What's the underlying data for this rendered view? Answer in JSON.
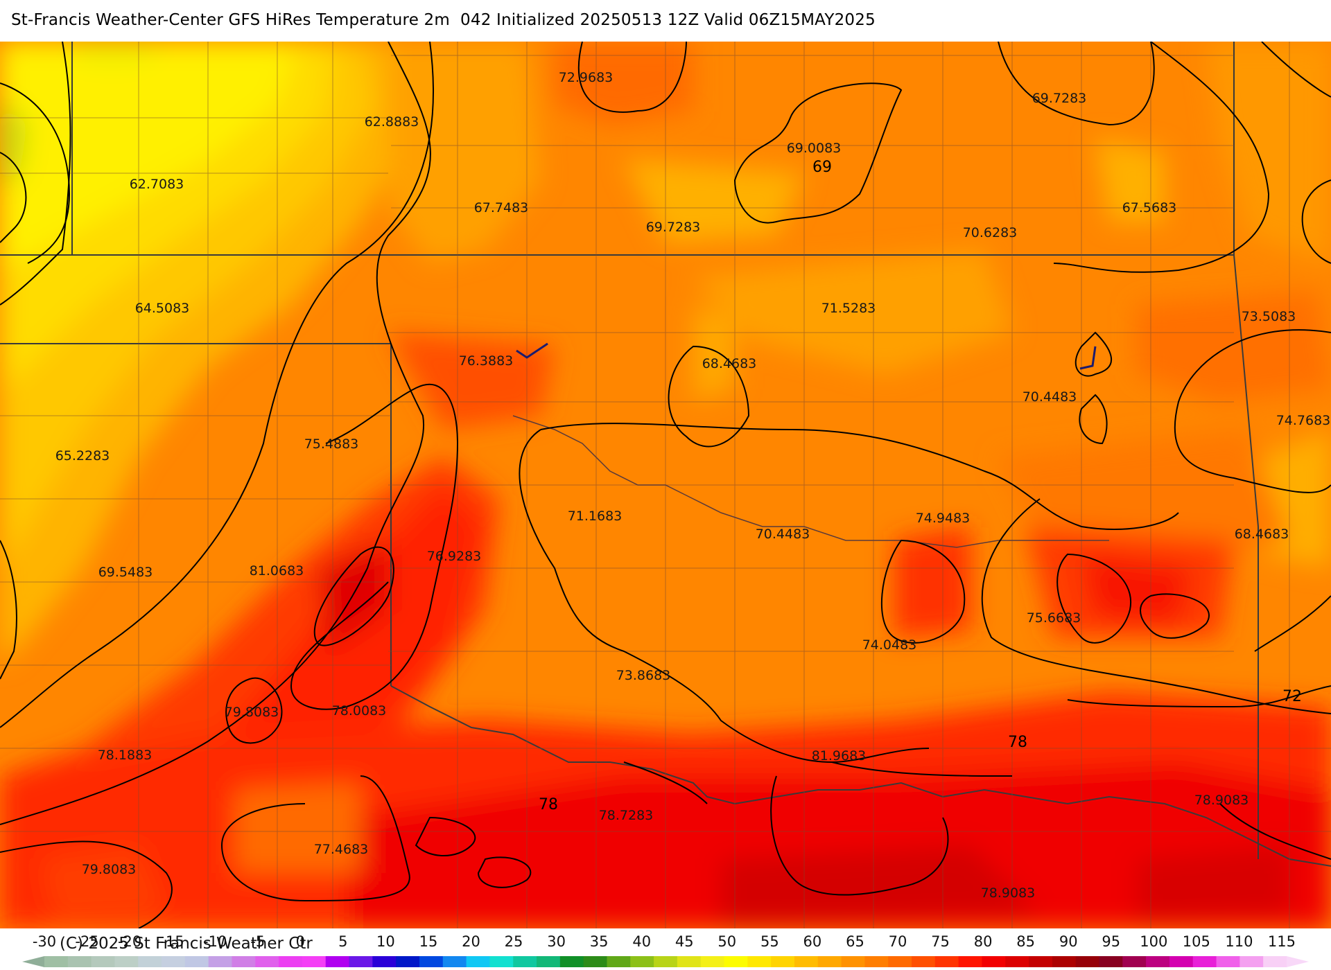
{
  "title": "St-Francis Weather-Center GFS HiRes Temperature 2m  042 Initialized 20250513 12Z Valid 06Z15MAY2025",
  "copyright": "(C) 2025 St Francis Weather Ctr",
  "point_labels": [
    "62.8883",
    "72.9683",
    "69.7283",
    "62.7083",
    "69.0083",
    "67.7483",
    "69.7283",
    "70.6283",
    "67.5683",
    "64.5083",
    "71.5283",
    "73.5083",
    "76.3883",
    "68.4683",
    "70.4483",
    "65.2283",
    "75.4883",
    "74.7683",
    "71.1683",
    "70.4483",
    "74.9483",
    "68.4683",
    "76.9283",
    "69.5483",
    "81.0683",
    "75.6683",
    "74.0483",
    "73.8683",
    "79.8083",
    "78.0083",
    "78.1883",
    "81.9683",
    "78.7283",
    "78.9083",
    "77.4683",
    "79.8083",
    "78.9083"
  ],
  "contour_labels": [
    "69",
    "72",
    "78",
    "78"
  ],
  "colorbar": {
    "ticks": [
      "-30",
      "-25",
      "-20",
      "-15",
      "-10",
      "-5",
      "0",
      "5",
      "10",
      "15",
      "20",
      "25",
      "30",
      "35",
      "40",
      "45",
      "50",
      "55",
      "60",
      "65",
      "70",
      "75",
      "80",
      "85",
      "90",
      "95",
      "100",
      "105",
      "110",
      "115"
    ],
    "colors": [
      "#9fbfa4",
      "#a9c3b0",
      "#b4c9bc",
      "#bccfc6",
      "#c2d1d8",
      "#c5cfe0",
      "#c0c7e4",
      "#c4a0e6",
      "#d07fe6",
      "#e060ec",
      "#ec3ff2",
      "#f43ff6",
      "#b000f0",
      "#6a18e8",
      "#2a00d8",
      "#0018c8",
      "#0048e0",
      "#1288f0",
      "#10c8f4",
      "#12e0d0",
      "#10c8a0",
      "#12b878",
      "#109028",
      "#2c8c18",
      "#60a818",
      "#8cc018",
      "#b8d418",
      "#e0e418",
      "#f4f018",
      "#fcfc00",
      "#ffe800",
      "#ffd400",
      "#ffbc00",
      "#ffa800",
      "#ff9200",
      "#ff7e00",
      "#ff6a00",
      "#ff5000",
      "#ff3400",
      "#ff1400",
      "#f20000",
      "#dc0000",
      "#c40000",
      "#ac0000",
      "#960008",
      "#880020",
      "#a00050",
      "#bc0080",
      "#d400b0",
      "#e820d8",
      "#f060ea",
      "#f4a0f0",
      "#f8d0f6"
    ],
    "left_arrow_color": "#8fae98",
    "right_arrow_color": "#f8d8f8"
  },
  "legend_colors": {
    "map_base": "#ff8c00",
    "contour": "#000000",
    "border": "#3a3a3a",
    "wind_barb": "#1c1c6e"
  }
}
